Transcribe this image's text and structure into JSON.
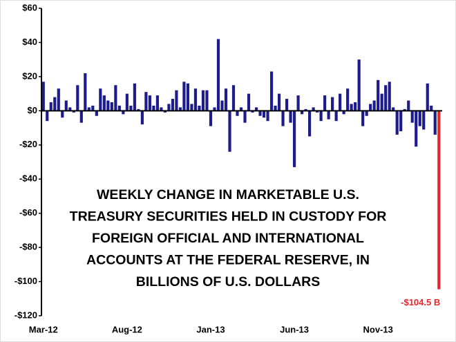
{
  "chart_data": {
    "type": "bar",
    "annotation": [
      "WEEKLY CHANGE IN MARKETABLE U.S.",
      "TREASURY SECURITIES HELD IN CUSTODY FOR",
      "FOREIGN OFFICIAL AND INTERNATIONAL",
      "ACCOUNTS AT THE FEDERAL RESERVE, IN",
      "BILLIONS OF U.S. DOLLARS"
    ],
    "categories": [
      "Mar-12",
      null,
      null,
      null,
      null,
      null,
      null,
      null,
      null,
      null,
      null,
      null,
      null,
      null,
      null,
      null,
      null,
      null,
      null,
      null,
      null,
      null,
      "Aug-12",
      null,
      null,
      null,
      null,
      null,
      null,
      null,
      null,
      null,
      null,
      null,
      null,
      null,
      null,
      null,
      null,
      null,
      null,
      null,
      null,
      null,
      "Jan-13",
      null,
      null,
      null,
      null,
      null,
      null,
      null,
      null,
      null,
      null,
      null,
      null,
      null,
      null,
      null,
      null,
      null,
      null,
      null,
      null,
      null,
      "Jun-13",
      null,
      null,
      null,
      null,
      null,
      null,
      null,
      null,
      null,
      null,
      null,
      null,
      null,
      null,
      null,
      null,
      null,
      null,
      null,
      null,
      null,
      "Nov-13",
      null,
      null,
      null,
      null,
      null,
      null,
      null,
      null,
      null,
      null,
      null,
      null,
      null,
      null,
      null,
      null
    ],
    "values": [
      17,
      -6,
      5,
      8,
      13,
      -4,
      6,
      2,
      -1,
      15,
      -7,
      22,
      2,
      3,
      -3,
      13,
      9,
      6,
      5,
      15,
      3,
      -2,
      10,
      3,
      16,
      1,
      -8,
      11,
      9,
      3,
      9,
      2,
      -1,
      4,
      7,
      12,
      2,
      17,
      16,
      4,
      13,
      3,
      12,
      12,
      -9,
      2,
      42,
      6,
      13,
      -24,
      15,
      -3,
      2,
      -7,
      10,
      -1,
      2,
      -3,
      -4,
      -6,
      23,
      3,
      10,
      -9,
      7,
      -7,
      -33,
      9,
      -2,
      1,
      -15,
      2,
      -1,
      -6,
      9,
      -5,
      8,
      -6,
      10,
      -2,
      13,
      4,
      5,
      30,
      -9,
      -3,
      4,
      6,
      18,
      10,
      15,
      17,
      2,
      -14,
      -12,
      1,
      6,
      -7,
      -21,
      -9,
      -11,
      16,
      3,
      -14,
      -104.5
    ],
    "value_labels": [
      null,
      null,
      null,
      null,
      null,
      null,
      null,
      null,
      null,
      null,
      null,
      null,
      null,
      null,
      null,
      null,
      null,
      null,
      null,
      null,
      null,
      null,
      null,
      null,
      null,
      null,
      null,
      null,
      null,
      null,
      null,
      null,
      null,
      null,
      null,
      null,
      null,
      null,
      null,
      null,
      null,
      null,
      null,
      null,
      null,
      null,
      null,
      null,
      null,
      null,
      null,
      null,
      null,
      null,
      null,
      null,
      null,
      null,
      null,
      null,
      null,
      null,
      null,
      null,
      null,
      null,
      null,
      null,
      null,
      null,
      null,
      null,
      null,
      null,
      null,
      null,
      null,
      null,
      null,
      null,
      null,
      null,
      null,
      null,
      null,
      null,
      null,
      null,
      null,
      null,
      null,
      null,
      null,
      null,
      null,
      null,
      null,
      null,
      null,
      null,
      null,
      null,
      null,
      null,
      "-$104.5 B"
    ],
    "colors": [
      "#1c1c8c",
      "#1c1c8c",
      "#1c1c8c",
      "#1c1c8c",
      "#1c1c8c",
      "#1c1c8c",
      "#1c1c8c",
      "#1c1c8c",
      "#1c1c8c",
      "#1c1c8c",
      "#1c1c8c",
      "#1c1c8c",
      "#1c1c8c",
      "#1c1c8c",
      "#1c1c8c",
      "#1c1c8c",
      "#1c1c8c",
      "#1c1c8c",
      "#1c1c8c",
      "#1c1c8c",
      "#1c1c8c",
      "#1c1c8c",
      "#1c1c8c",
      "#1c1c8c",
      "#1c1c8c",
      "#1c1c8c",
      "#1c1c8c",
      "#1c1c8c",
      "#1c1c8c",
      "#1c1c8c",
      "#1c1c8c",
      "#1c1c8c",
      "#1c1c8c",
      "#1c1c8c",
      "#1c1c8c",
      "#1c1c8c",
      "#1c1c8c",
      "#1c1c8c",
      "#1c1c8c",
      "#1c1c8c",
      "#1c1c8c",
      "#1c1c8c",
      "#1c1c8c",
      "#1c1c8c",
      "#1c1c8c",
      "#1c1c8c",
      "#1c1c8c",
      "#1c1c8c",
      "#1c1c8c",
      "#1c1c8c",
      "#1c1c8c",
      "#1c1c8c",
      "#1c1c8c",
      "#1c1c8c",
      "#1c1c8c",
      "#1c1c8c",
      "#1c1c8c",
      "#1c1c8c",
      "#1c1c8c",
      "#1c1c8c",
      "#1c1c8c",
      "#1c1c8c",
      "#1c1c8c",
      "#1c1c8c",
      "#1c1c8c",
      "#1c1c8c",
      "#1c1c8c",
      "#1c1c8c",
      "#1c1c8c",
      "#1c1c8c",
      "#1c1c8c",
      "#1c1c8c",
      "#1c1c8c",
      "#1c1c8c",
      "#1c1c8c",
      "#1c1c8c",
      "#1c1c8c",
      "#1c1c8c",
      "#1c1c8c",
      "#1c1c8c",
      "#1c1c8c",
      "#1c1c8c",
      "#1c1c8c",
      "#1c1c8c",
      "#1c1c8c",
      "#1c1c8c",
      "#1c1c8c",
      "#1c1c8c",
      "#1c1c8c",
      "#1c1c8c",
      "#1c1c8c",
      "#1c1c8c",
      "#1c1c8c",
      "#1c1c8c",
      "#1c1c8c",
      "#1c1c8c",
      "#1c1c8c",
      "#1c1c8c",
      "#1c1c8c",
      "#1c1c8c",
      "#1c1c8c",
      "#1c1c8c",
      "#1c1c8c",
      "#1c1c8c",
      "#e3262b"
    ],
    "ylim": [
      -120,
      60
    ],
    "yticks": [
      {
        "value": -120,
        "label": "-$120"
      },
      {
        "value": -100,
        "label": "-$100"
      },
      {
        "value": -80,
        "label": "-$80"
      },
      {
        "value": -60,
        "label": "-$60"
      },
      {
        "value": -40,
        "label": "-$40"
      },
      {
        "value": -20,
        "label": "-$20"
      },
      {
        "value": 0,
        "label": "$0"
      },
      {
        "value": 20,
        "label": "$20"
      },
      {
        "value": 40,
        "label": "$40"
      },
      {
        "value": 60,
        "label": "$60"
      }
    ],
    "grid": false
  }
}
